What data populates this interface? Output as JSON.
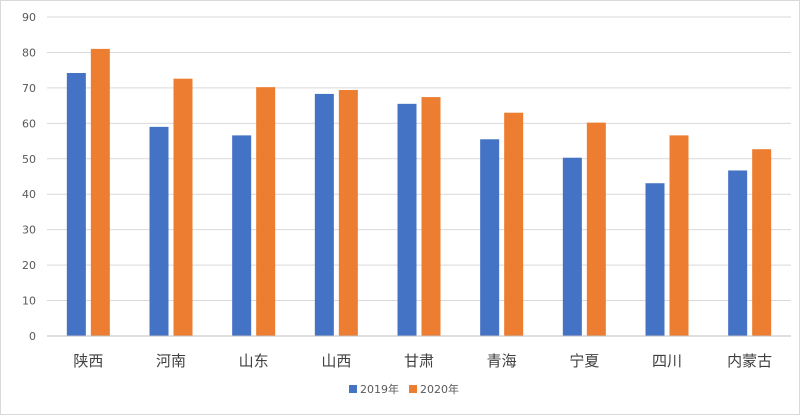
{
  "chart_data": {
    "type": "bar",
    "title": "",
    "xlabel": "",
    "ylabel": "",
    "ylim": [
      0,
      90
    ],
    "yticks": [
      0,
      10,
      20,
      30,
      40,
      50,
      60,
      70,
      80,
      90
    ],
    "grid": true,
    "legend_position": "bottom",
    "categories": [
      "陕西",
      "河南",
      "山东",
      "山西",
      "甘肃",
      "青海",
      "宁夏",
      "四川",
      "内蒙古"
    ],
    "series": [
      {
        "name": "2019年",
        "color": "#4472c4",
        "values": [
          74.2,
          59.0,
          56.6,
          68.3,
          65.5,
          55.5,
          50.3,
          43.1,
          46.7
        ]
      },
      {
        "name": "2020年",
        "color": "#ed7d31",
        "values": [
          81.0,
          72.6,
          70.2,
          69.4,
          67.4,
          63.0,
          60.2,
          56.6,
          52.7
        ]
      }
    ]
  }
}
